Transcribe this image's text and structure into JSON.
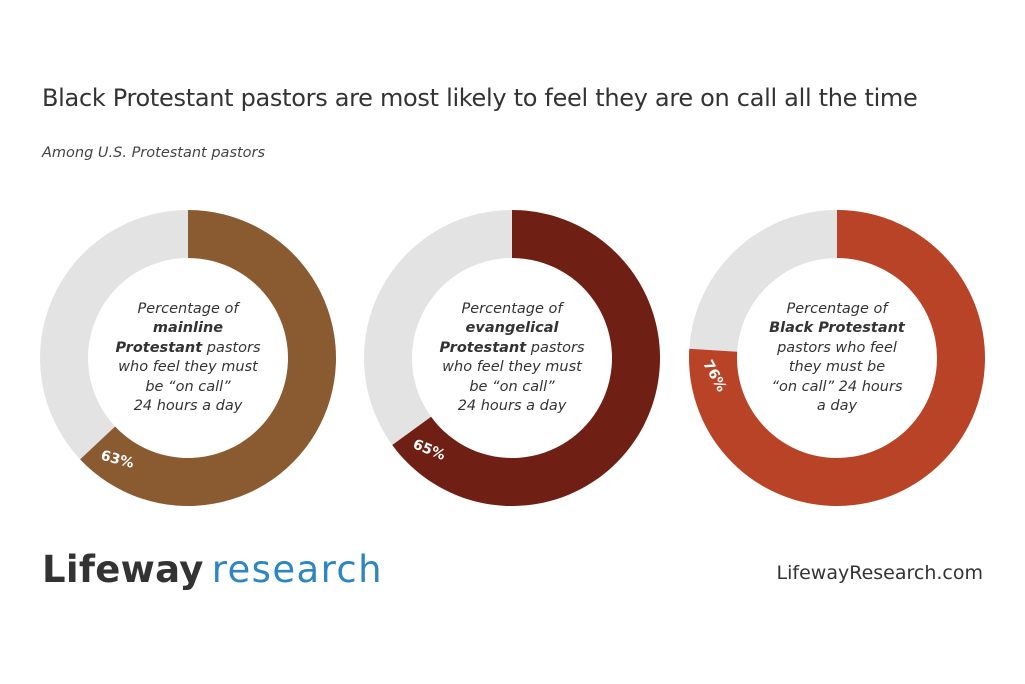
{
  "title": "Black Protestant pastors are most likely to feel they are on call all the time",
  "subtitle": "Among U.S. Protestant pastors",
  "chart_data": [
    {
      "type": "pie",
      "value": 63,
      "value_label": "63%",
      "colors": {
        "fill": "#8a5a30",
        "remainder": "#e3e3e3"
      },
      "center_text": [
        {
          "text": "Percentage of",
          "bold": false
        },
        {
          "text": "mainline",
          "bold": true
        },
        {
          "text": "Protestant",
          "bold": true
        },
        {
          "text": " pastors",
          "bold": false
        },
        {
          "text": "who feel they must",
          "bold": false
        },
        {
          "text": "be “on call”",
          "bold": false
        },
        {
          "text": "24 hours a day",
          "bold": false
        }
      ]
    },
    {
      "type": "pie",
      "value": 65,
      "value_label": "65%",
      "colors": {
        "fill": "#701f14",
        "remainder": "#e3e3e3"
      },
      "center_text": [
        {
          "text": "Percentage of",
          "bold": false
        },
        {
          "text": "evangelical",
          "bold": true
        },
        {
          "text": "Protestant",
          "bold": true
        },
        {
          "text": " pastors",
          "bold": false
        },
        {
          "text": "who feel they must",
          "bold": false
        },
        {
          "text": "be “on call”",
          "bold": false
        },
        {
          "text": "24 hours a day",
          "bold": false
        }
      ]
    },
    {
      "type": "pie",
      "value": 76,
      "value_label": "76%",
      "colors": {
        "fill": "#b84327",
        "remainder": "#e3e3e3"
      },
      "center_text": [
        {
          "text": "Percentage of",
          "bold": false
        },
        {
          "text": "Black Protestant",
          "bold": true
        },
        {
          "text": "pastors who feel",
          "bold": false
        },
        {
          "text": "they must be",
          "bold": false
        },
        {
          "text": "“on call” 24 hours",
          "bold": false
        },
        {
          "text": "a day",
          "bold": false
        }
      ]
    }
  ],
  "footer": {
    "logo_brand": "Lifeway",
    "logo_sub": "research",
    "url": "LifewayResearch.com"
  }
}
